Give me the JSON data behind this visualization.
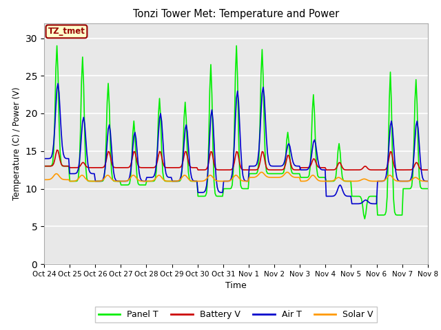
{
  "title": "Tonzi Tower Met: Temperature and Power",
  "xlabel": "Time",
  "ylabel": "Temperature (C) / Power (V)",
  "xlim_labels": [
    "Oct 24",
    "Oct 25",
    "Oct 26",
    "Oct 27",
    "Oct 28",
    "Oct 29",
    "Oct 30",
    "Oct 31",
    "Nov 1",
    "Nov 2",
    "Nov 3",
    "Nov 4",
    "Nov 5",
    "Nov 6",
    "Nov 7",
    "Nov 8"
  ],
  "ylim": [
    0,
    32
  ],
  "yticks": [
    0,
    5,
    10,
    15,
    20,
    25,
    30
  ],
  "bg_color": "#e8e8e8",
  "fig_color": "#ffffff",
  "legend_label": "TZ_tmet",
  "legend_bg": "#ffffcc",
  "legend_border": "#990000",
  "series": {
    "panel_t": {
      "label": "Panel T",
      "color": "#00ee00",
      "lw": 1.2
    },
    "battery_v": {
      "label": "Battery V",
      "color": "#cc0000",
      "lw": 1.2
    },
    "air_t": {
      "label": "Air T",
      "color": "#0000cc",
      "lw": 1.2
    },
    "solar_v": {
      "label": "Solar V",
      "color": "#ff9900",
      "lw": 1.2
    }
  },
  "panel_peaks": [
    29.0,
    27.5,
    24.0,
    19.0,
    22.0,
    21.5,
    26.5,
    29.0,
    28.5,
    17.5,
    22.5,
    16.0,
    6.0,
    25.5,
    24.5
  ],
  "panel_base": [
    13.0,
    11.0,
    11.0,
    10.5,
    11.0,
    11.0,
    9.0,
    10.0,
    12.0,
    12.0,
    11.5,
    11.0,
    9.0,
    6.5,
    10.0
  ],
  "air_peaks": [
    24.0,
    19.5,
    18.5,
    17.5,
    20.0,
    18.5,
    20.5,
    23.0,
    23.5,
    16.0,
    16.5,
    10.5,
    8.5,
    19.0,
    19.0
  ],
  "air_base": [
    14.0,
    12.0,
    11.0,
    11.0,
    11.5,
    11.0,
    9.5,
    11.0,
    13.0,
    13.0,
    12.5,
    9.0,
    8.0,
    11.0,
    11.0
  ],
  "batt_base": [
    13.0,
    12.8,
    12.8,
    12.8,
    12.8,
    12.8,
    12.5,
    12.5,
    12.5,
    12.5,
    12.8,
    12.5,
    12.5,
    12.5,
    12.5
  ],
  "batt_peaks": [
    15.2,
    13.5,
    15.0,
    15.0,
    15.0,
    15.0,
    15.0,
    15.0,
    15.0,
    14.5,
    14.0,
    13.5,
    13.0,
    15.0,
    13.5
  ],
  "solar_base": [
    11.2,
    11.0,
    11.0,
    11.0,
    11.0,
    11.0,
    11.0,
    11.0,
    11.5,
    11.5,
    11.0,
    11.0,
    11.0,
    11.0,
    11.0
  ],
  "solar_peaks": [
    12.0,
    11.8,
    11.8,
    11.8,
    11.8,
    11.8,
    11.8,
    11.8,
    12.2,
    12.2,
    11.8,
    11.5,
    11.3,
    11.8,
    11.5
  ]
}
